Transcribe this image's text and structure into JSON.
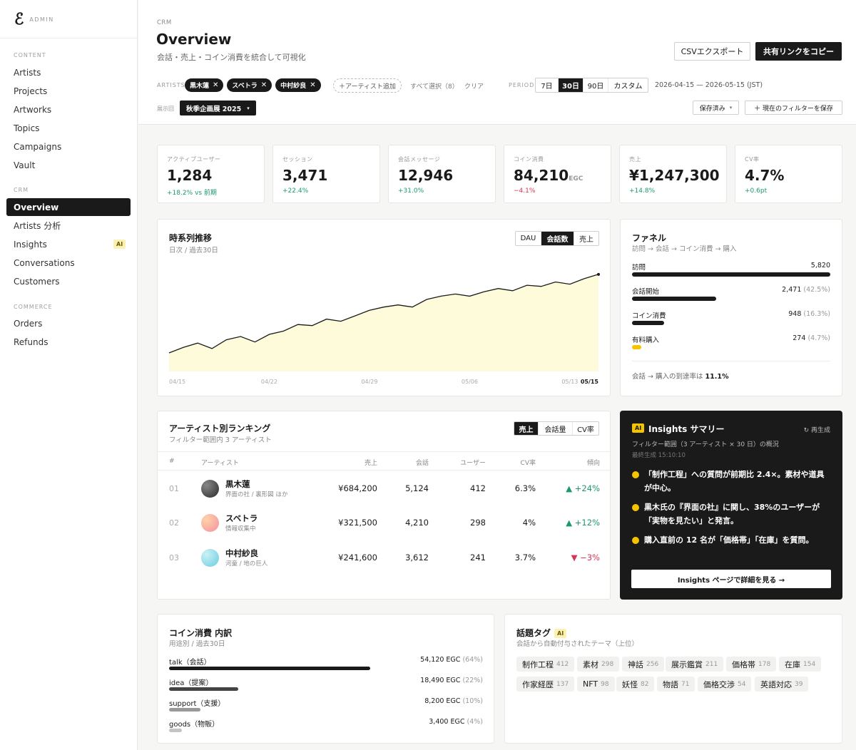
{
  "sidebar": {
    "brand_mark": "ℰ",
    "brand_label": "ADMIN",
    "sections": {
      "content": "CONTENT",
      "crm": "CRM",
      "commerce": "COMMERCE"
    },
    "content_items": [
      "Artists",
      "Projects",
      "Artworks",
      "Topics",
      "Campaigns",
      "Vault"
    ],
    "crm_items": [
      "Overview",
      "Artists 分析",
      "Insights",
      "Conversations",
      "Customers"
    ],
    "insights_badge": "AI",
    "commerce_items": [
      "Orders",
      "Refunds"
    ],
    "active_item": "Overview"
  },
  "header": {
    "crumb": "CRM",
    "title": "Overview",
    "subtitle": "会話・売上・コイン消費を統合して可視化",
    "csv_button": "CSVエクスポート",
    "share_button": "共有リンクをコピー"
  },
  "filters": {
    "artists_label": "ARTISTS",
    "artist_chips": [
      "黒木蓮",
      "スベトラ",
      "中村紗良"
    ],
    "chip_remove": "✕",
    "add_artist": "＋アーティスト追加",
    "select_all": "すべて選択（8）",
    "clear": "クリア",
    "period_label": "PERIOD",
    "period_options": [
      "7日",
      "30日",
      "90日",
      "カスタム"
    ],
    "period_selected": "30日",
    "date_range": "2026-04-15 — 2026-05-15 (JST)",
    "exhibition_label": "展示回",
    "exhibition_value": "秋季企画展 2025",
    "exhibition_caret": "▾",
    "saved_button": "保存済み",
    "saved_caret": "▾",
    "save_filter_button": "＋ 現在のフィルターを保存"
  },
  "kpis": [
    {
      "label": "アクティブユーザー",
      "value": "1,284",
      "unit": "",
      "delta": "+18.2% vs 前期",
      "trend": "up"
    },
    {
      "label": "セッション",
      "value": "3,471",
      "unit": "",
      "delta": "+22.4%",
      "trend": "up"
    },
    {
      "label": "会話メッセージ",
      "value": "12,946",
      "unit": "",
      "delta": "+31.0%",
      "trend": "up"
    },
    {
      "label": "コイン消費",
      "value": "84,210",
      "unit": "EGC",
      "delta": "−4.1%",
      "trend": "down"
    },
    {
      "label": "売上",
      "value": "¥1,247,300",
      "unit": "",
      "delta": "+14.8%",
      "trend": "up"
    },
    {
      "label": "CV率",
      "value": "4.7%",
      "unit": "",
      "delta": "+0.6pt",
      "trend": "up"
    }
  ],
  "timeseries": {
    "title": "時系列推移",
    "subtitle": "日次 / 過去30日",
    "tabs": [
      "DAU",
      "会話数",
      "売上"
    ],
    "selected_tab": "会話数",
    "fill_color": "#fdfbd9",
    "line_color": "#1a1a1a",
    "chart_data": {
      "type": "area",
      "x": [
        "04/15",
        "04/16",
        "04/17",
        "04/18",
        "04/19",
        "04/20",
        "04/21",
        "04/22",
        "04/23",
        "04/24",
        "04/25",
        "04/26",
        "04/27",
        "04/28",
        "04/29",
        "04/30",
        "05/01",
        "05/02",
        "05/03",
        "05/04",
        "05/05",
        "05/06",
        "05/07",
        "05/08",
        "05/09",
        "05/10",
        "05/11",
        "05/12",
        "05/13",
        "05/14",
        "05/15"
      ],
      "tick_labels": [
        "04/15",
        "04/22",
        "04/29",
        "05/06",
        "05/13",
        "05/15"
      ],
      "y_range": [
        0,
        100
      ],
      "values": [
        17,
        22,
        26,
        21,
        29,
        32,
        27,
        34,
        37,
        43,
        42,
        48,
        46,
        51,
        56,
        59,
        61,
        59,
        66,
        69,
        71,
        69,
        73,
        76,
        74,
        79,
        78,
        82,
        80,
        85,
        89
      ],
      "grid": false
    }
  },
  "funnel": {
    "title": "ファネル",
    "subtitle": "訪問 → 会話 → コイン消費 → 購入",
    "steps": [
      {
        "label": "訪問",
        "value": "5,820",
        "pct": "",
        "ratio": 1.0,
        "color": "#1a1a1a"
      },
      {
        "label": "会話開始",
        "value": "2,471",
        "pct": "(42.5%)",
        "ratio": 0.425,
        "color": "#1a1a1a"
      },
      {
        "label": "コイン消費",
        "value": "948",
        "pct": "(16.3%)",
        "ratio": 0.163,
        "color": "#1a1a1a"
      },
      {
        "label": "有料購入",
        "value": "274",
        "pct": "(4.7%)",
        "ratio": 0.047,
        "color": "#f5c400"
      }
    ],
    "footer_prefix": "会話 → 購入の到達率は",
    "footer_value": "11.1%"
  },
  "ranking": {
    "title": "アーティスト別ランキング",
    "subtitle": "フィルター範囲内 3 アーティスト",
    "tabs": [
      "売上",
      "会話量",
      "CV率"
    ],
    "selected_tab": "売上",
    "columns": [
      "#",
      "アーティスト",
      "売上",
      "会話",
      "ユーザー",
      "CV率",
      "傾向"
    ],
    "rows": [
      {
        "rank": "01",
        "name": "黒木蓮",
        "sub": "界面の社 / 裏形図 ほか",
        "sales": "¥684,200",
        "conv": "5,124",
        "users": "412",
        "cv": "6.3%",
        "trend": "▲ +24%",
        "dir": "up"
      },
      {
        "rank": "02",
        "name": "スベトラ",
        "sub": "情報収集中",
        "sales": "¥321,500",
        "conv": "4,210",
        "users": "298",
        "cv": "4%",
        "trend": "▲ +12%",
        "dir": "up"
      },
      {
        "rank": "03",
        "name": "中村紗良",
        "sub": "河童 / 地の巨人",
        "sales": "¥241,600",
        "conv": "3,612",
        "users": "241",
        "cv": "3.7%",
        "trend": "▼ −3%",
        "dir": "down"
      }
    ]
  },
  "insights": {
    "badge": "AI",
    "title": "Insights サマリー",
    "regen": "↻ 再生成",
    "scope": "フィルター範囲（3 アーティスト × 30 日）の概況",
    "generated": "最終生成 15:10:10",
    "bullets": [
      "「制作工程」への質問が前期比 2.4×。素材や道具が中心。",
      "黒木氏の『界面の社』に関し、38%のユーザーが「実物を見たい」と発言。",
      "購入直前の 12 名が「価格帯」「在庫」を質問。"
    ],
    "cta": "Insights ページで詳細を見る →"
  },
  "coins": {
    "title": "コイン消費 内訳",
    "subtitle": "用途別 / 過去30日",
    "rows": [
      {
        "label": "talk（会話）",
        "value": "54,120 EGC",
        "pct": "(64%)",
        "ratio": 0.64,
        "color": "#1a1a1a"
      },
      {
        "label": "idea（提案）",
        "value": "18,490 EGC",
        "pct": "(22%)",
        "ratio": 0.22,
        "color": "#444"
      },
      {
        "label": "support（支援）",
        "value": "8,200 EGC",
        "pct": "(10%)",
        "ratio": 0.1,
        "color": "#999"
      },
      {
        "label": "goods（物販）",
        "value": "3,400 EGC",
        "pct": "(4%)",
        "ratio": 0.04,
        "color": "#c4c4c4"
      }
    ]
  },
  "tags": {
    "title": "話題タグ",
    "badge": "AI",
    "subtitle": "会話から自動付与されたテーマ（上位）",
    "row1": [
      {
        "name": "制作工程",
        "count": "412"
      },
      {
        "name": "素材",
        "count": "298"
      },
      {
        "name": "神話",
        "count": "256"
      },
      {
        "name": "展示鑑賞",
        "count": "211"
      },
      {
        "name": "価格帯",
        "count": "178"
      },
      {
        "name": "在庫",
        "count": "154"
      }
    ],
    "row2": [
      {
        "name": "作家経歴",
        "count": "137"
      },
      {
        "name": "NFT",
        "count": "98"
      },
      {
        "name": "妖怪",
        "count": "82"
      },
      {
        "name": "物語",
        "count": "71"
      },
      {
        "name": "価格交渉",
        "count": "54"
      },
      {
        "name": "英語対応",
        "count": "39"
      }
    ]
  }
}
